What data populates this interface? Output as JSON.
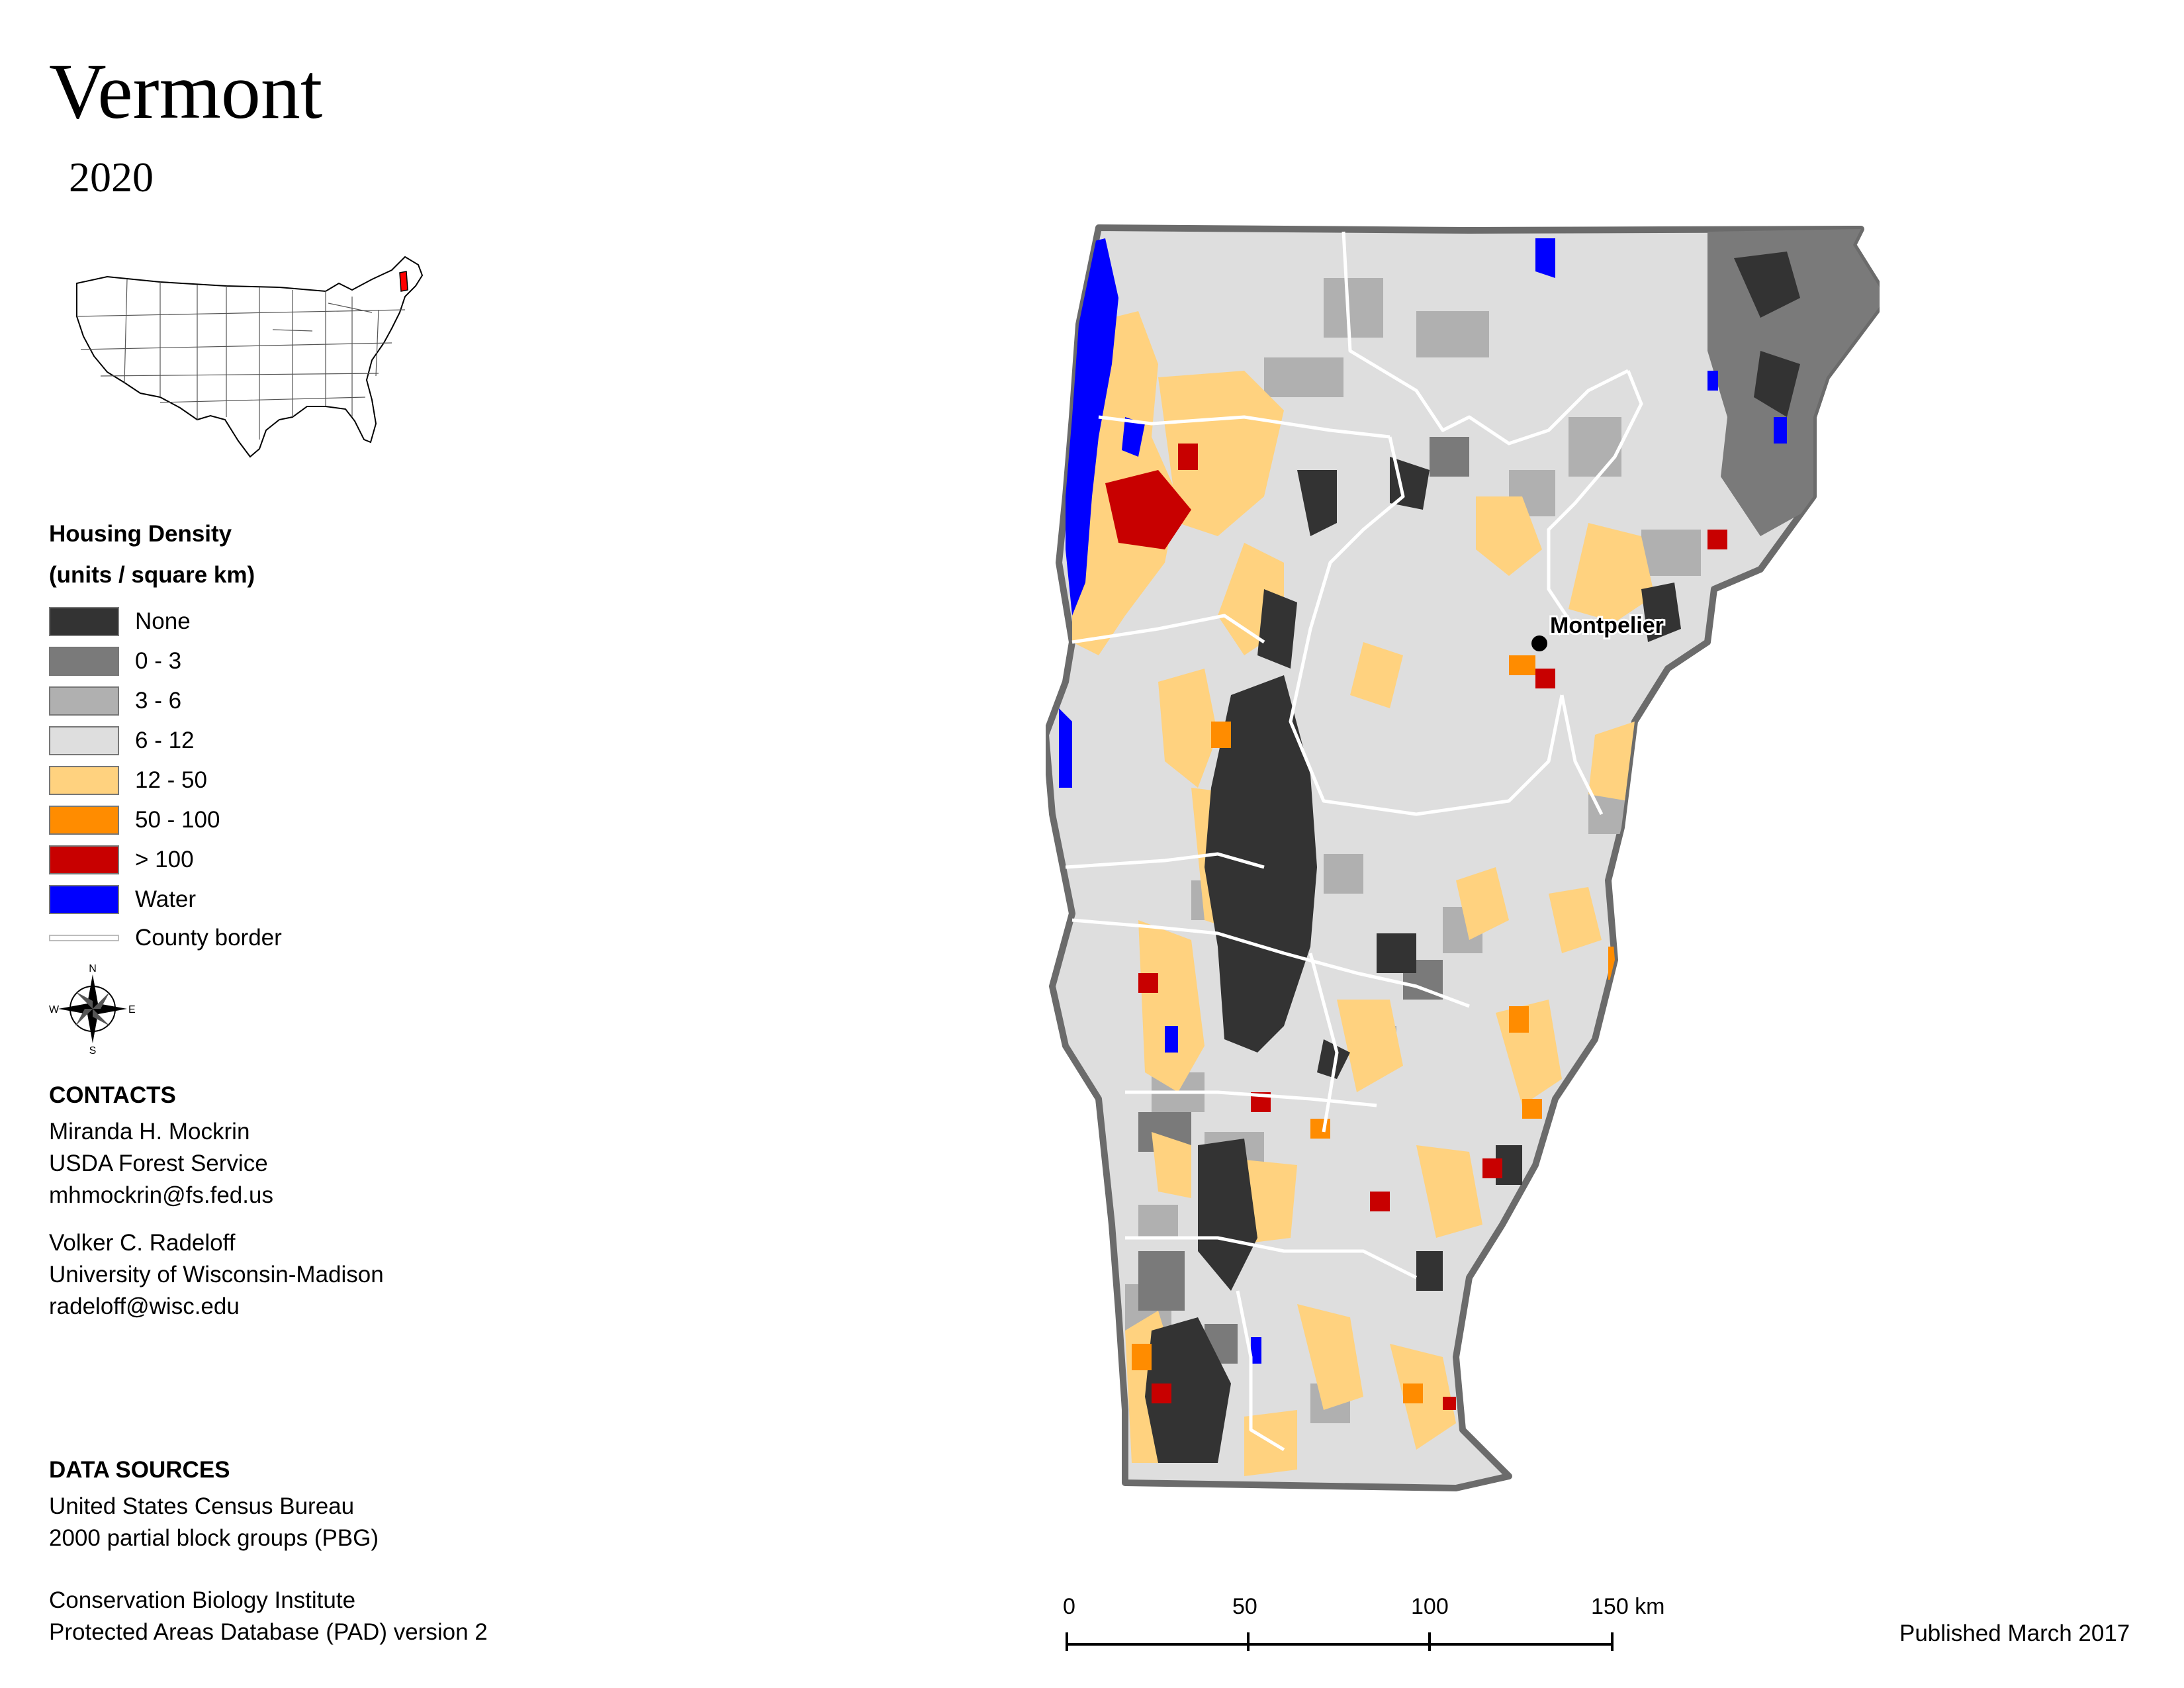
{
  "header": {
    "title": "Vermont",
    "year": "2020"
  },
  "legend": {
    "title": "Housing Density",
    "units": "(units / square km)",
    "items": [
      {
        "label": "None",
        "color": "#333333"
      },
      {
        "label": "0 - 3",
        "color": "#7a7a7a"
      },
      {
        "label": "3 - 6",
        "color": "#b0b0b0"
      },
      {
        "label": "6 - 12",
        "color": "#dedede"
      },
      {
        "label": "12 - 50",
        "color": "#ffd27f"
      },
      {
        "label": "50 - 100",
        "color": "#ff8c00"
      },
      {
        "label": "> 100",
        "color": "#c80000"
      },
      {
        "label": "Water",
        "color": "#0000ff"
      }
    ],
    "county_border_label": "County border",
    "county_border_color": "#ffffff"
  },
  "compass": {
    "n": "N",
    "s": "S",
    "e": "E",
    "w": "W"
  },
  "contacts": {
    "heading": "CONTACTS",
    "people": [
      {
        "name": "Miranda H. Mockrin",
        "org": "USDA Forest Service",
        "email": "mhmockrin@fs.fed.us"
      },
      {
        "name": "Volker C. Radeloff",
        "org": "University of Wisconsin-Madison",
        "email": "radeloff@wisc.edu"
      }
    ]
  },
  "sources": {
    "heading": "DATA SOURCES",
    "groups": [
      {
        "line1": "United States Census Bureau",
        "line2": "2000 partial block groups (PBG)"
      },
      {
        "line1": "Conservation Biology Institute",
        "line2": "Protected Areas Database (PAD) version 2"
      }
    ]
  },
  "map": {
    "city_label": "Montpelier",
    "inset_highlight_color": "#ff0000"
  },
  "scale_bar": {
    "ticks": [
      "0",
      "50",
      "100",
      "150 km"
    ]
  },
  "published": "Published March 2017"
}
